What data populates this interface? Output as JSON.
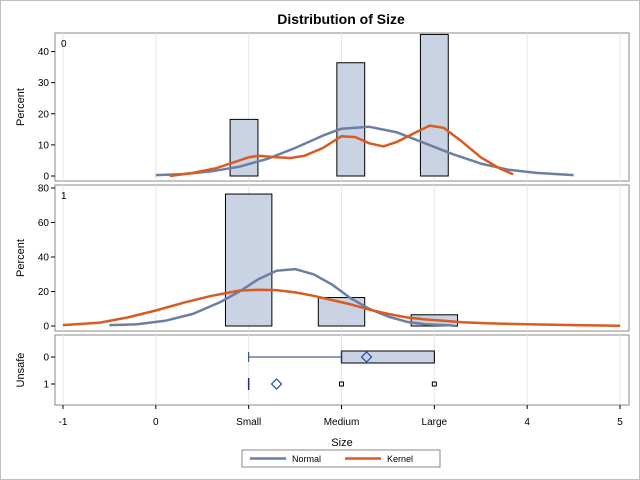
{
  "chart_data": {
    "type": "bar",
    "title": "Distribution of Size",
    "xlabel": "Size",
    "xlim": [
      -1,
      5
    ],
    "x_ticks": [
      {
        "value": -1,
        "label": "-1"
      },
      {
        "value": 0,
        "label": "0"
      },
      {
        "value": 1,
        "label": "Small"
      },
      {
        "value": 2,
        "label": "Medium"
      },
      {
        "value": 3,
        "label": "Large"
      },
      {
        "value": 4,
        "label": "4"
      },
      {
        "value": 5,
        "label": "5"
      }
    ],
    "grid": true,
    "legend_position": "bottom",
    "legend": [
      {
        "name": "Normal",
        "color": "#6c7fa3"
      },
      {
        "name": "Kernel",
        "color": "#d95a23"
      }
    ],
    "bar_color": "#c9d3e4",
    "panels": [
      {
        "label": "0",
        "ylabel": "Percent",
        "ylim": [
          0,
          45
        ],
        "y_ticks": [
          0,
          10,
          20,
          30,
          40
        ],
        "bars": [
          {
            "x_start": 0.8,
            "x_end": 1.1,
            "value": 18.2
          },
          {
            "x_start": 1.95,
            "x_end": 2.25,
            "value": 36.4
          },
          {
            "x_start": 2.85,
            "x_end": 3.15,
            "value": 45.5
          }
        ],
        "normal": {
          "x": [
            0,
            0.3,
            0.6,
            0.9,
            1.2,
            1.5,
            1.8,
            2.0,
            2.3,
            2.6,
            2.9,
            3.2,
            3.5,
            3.8,
            4.1,
            4.5
          ],
          "y": [
            0.3,
            0.6,
            1.5,
            3.0,
            5.5,
            9.0,
            13.0,
            15.2,
            15.8,
            14.0,
            10.5,
            7.0,
            4.0,
            2.0,
            1.0,
            0.3
          ]
        },
        "kernel": {
          "x": [
            0.15,
            0.4,
            0.65,
            0.85,
            1.0,
            1.1,
            1.3,
            1.45,
            1.6,
            1.8,
            2.0,
            2.15,
            2.3,
            2.45,
            2.6,
            2.8,
            2.95,
            3.1,
            3.3,
            3.5,
            3.7,
            3.85
          ],
          "y": [
            0,
            1.0,
            2.5,
            4.5,
            6.0,
            6.5,
            6.0,
            5.8,
            6.5,
            9.0,
            12.8,
            12.5,
            10.5,
            9.5,
            11.0,
            14.0,
            16.2,
            15.5,
            11.0,
            6.0,
            2.5,
            0.5
          ]
        }
      },
      {
        "label": "1",
        "ylabel": "Percent",
        "ylim": [
          0,
          80
        ],
        "y_ticks": [
          0,
          20,
          40,
          60,
          80
        ],
        "bars": [
          {
            "x_start": 0.75,
            "x_end": 1.25,
            "value": 76.5
          },
          {
            "x_start": 1.75,
            "x_end": 2.25,
            "value": 16.5
          },
          {
            "x_start": 2.75,
            "x_end": 3.25,
            "value": 6.5
          }
        ],
        "normal": {
          "x": [
            -0.5,
            -0.2,
            0.1,
            0.4,
            0.7,
            0.9,
            1.1,
            1.3,
            1.5,
            1.7,
            1.9,
            2.1,
            2.3,
            2.5,
            2.7,
            2.9,
            3.2
          ],
          "y": [
            0.5,
            1.0,
            3.0,
            7.0,
            14.0,
            20.0,
            27.0,
            32.0,
            33.0,
            30.0,
            24.0,
            16.0,
            10.0,
            5.5,
            2.5,
            1.0,
            0.3
          ]
        },
        "kernel": {
          "x": [
            -1,
            -0.6,
            -0.3,
            0,
            0.3,
            0.6,
            0.9,
            1.1,
            1.3,
            1.5,
            1.7,
            1.9,
            2.1,
            2.3,
            2.5,
            2.7,
            2.9,
            3.1,
            3.3,
            3.6,
            4.0,
            4.5,
            5.0
          ],
          "y": [
            0.5,
            2.0,
            5.0,
            9.0,
            13.5,
            17.5,
            20.5,
            21.0,
            20.8,
            19.5,
            17.5,
            15.0,
            12.5,
            9.5,
            7.0,
            5.0,
            3.8,
            3.0,
            2.2,
            1.5,
            1.0,
            0.5,
            0.2
          ]
        }
      }
    ],
    "boxplot": {
      "ylabel": "Unsafe",
      "groups": [
        {
          "label": "0",
          "min": 1.0,
          "q1": 2.0,
          "median": 2.0,
          "q3": 3.0,
          "max": 3.0,
          "mean": 2.27,
          "outliers": []
        },
        {
          "label": "1",
          "min": 1.0,
          "q1": 1.0,
          "median": 1.0,
          "q3": 1.0,
          "max": 1.0,
          "mean": 1.3,
          "outliers": [
            2.0,
            3.0
          ]
        }
      ]
    }
  }
}
